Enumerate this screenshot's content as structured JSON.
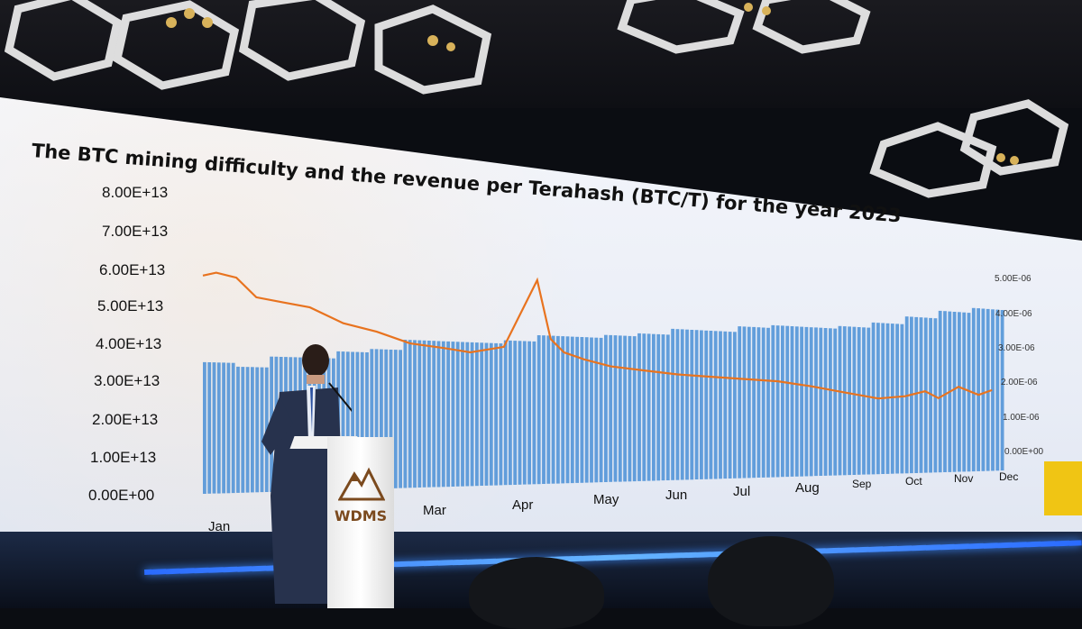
{
  "scene": {
    "slide_title": "The BTC mining difficulty and the revenue per Terahash (BTC/T) for the year 2023",
    "podium_logo": "WDMS"
  },
  "chart_data": {
    "type": "bar",
    "title": "The BTC mining difficulty and the revenue per Terahash (BTC/T) for the year 2023",
    "y_ticks": [
      "8.00E+13",
      "7.00E+13",
      "6.00E+13",
      "5.00E+13",
      "4.00E+13",
      "3.00E+13",
      "2.00E+13",
      "1.00E+13",
      "0.00E+00"
    ],
    "y2_ticks": [
      "5.00E-06",
      "4.00E-06",
      "3.00E-06",
      "2.00E-06",
      "1.00E-06",
      "0.00E+00"
    ],
    "ylim": [
      0,
      80000000000000.0
    ],
    "y2lim": [
      0,
      5e-06
    ],
    "months": [
      "Jan",
      "Mar",
      "Apr",
      "May",
      "Jun",
      "Jul",
      "Aug",
      "Sep",
      "Oct",
      "Nov",
      "Dec"
    ],
    "series": [
      {
        "kind": "bar",
        "color": "#4a8fd6",
        "x": [
          0,
          0.5,
          1,
          1.5,
          2,
          2.5,
          3,
          3.5,
          4,
          4.5,
          5,
          5.5,
          6,
          6.5,
          7,
          7.5,
          8,
          8.5,
          9,
          9.5,
          10,
          10.5,
          11,
          11.5
        ],
        "values": [
          35000000000000.0,
          34000000000000.0,
          37000000000000.0,
          37000000000000.0,
          39000000000000.0,
          40000000000000.0,
          43000000000000.0,
          43000000000000.0,
          43000000000000.0,
          44000000000000.0,
          46000000000000.0,
          46000000000000.0,
          47000000000000.0,
          48000000000000.0,
          50000000000000.0,
          50000000000000.0,
          52000000000000.0,
          53000000000000.0,
          53000000000000.0,
          54000000000000.0,
          56000000000000.0,
          59000000000000.0,
          62000000000000.0,
          64000000000000.0
        ]
      },
      {
        "kind": "line",
        "color": "#e8731f",
        "x": [
          0,
          0.2,
          0.5,
          0.8,
          1.2,
          1.6,
          2.1,
          2.6,
          3.1,
          3.6,
          4.0,
          4.5,
          5.0,
          5.2,
          5.4,
          5.7,
          6.1,
          6.6,
          7.1,
          7.6,
          8.1,
          8.6,
          9.1,
          9.6,
          10.1,
          10.5,
          10.8,
          11.0,
          11.3,
          11.6,
          11.8
        ],
        "values": [
          5.8e-06,
          5.9e-06,
          5.8e-06,
          5.3e-06,
          5.2e-06,
          5.1e-06,
          4.7e-06,
          4.5e-06,
          4.2e-06,
          4.1e-06,
          4e-06,
          4.2e-06,
          6.3e-06,
          4.5e-06,
          4.1e-06,
          3.9e-06,
          3.7e-06,
          3.6e-06,
          3.5e-06,
          3.45e-06,
          3.4e-06,
          3.35e-06,
          3.2e-06,
          3e-06,
          2.8e-06,
          2.9e-06,
          3.1e-06,
          2.85e-06,
          3.3e-06,
          3e-06,
          3.2e-06
        ]
      }
    ]
  }
}
